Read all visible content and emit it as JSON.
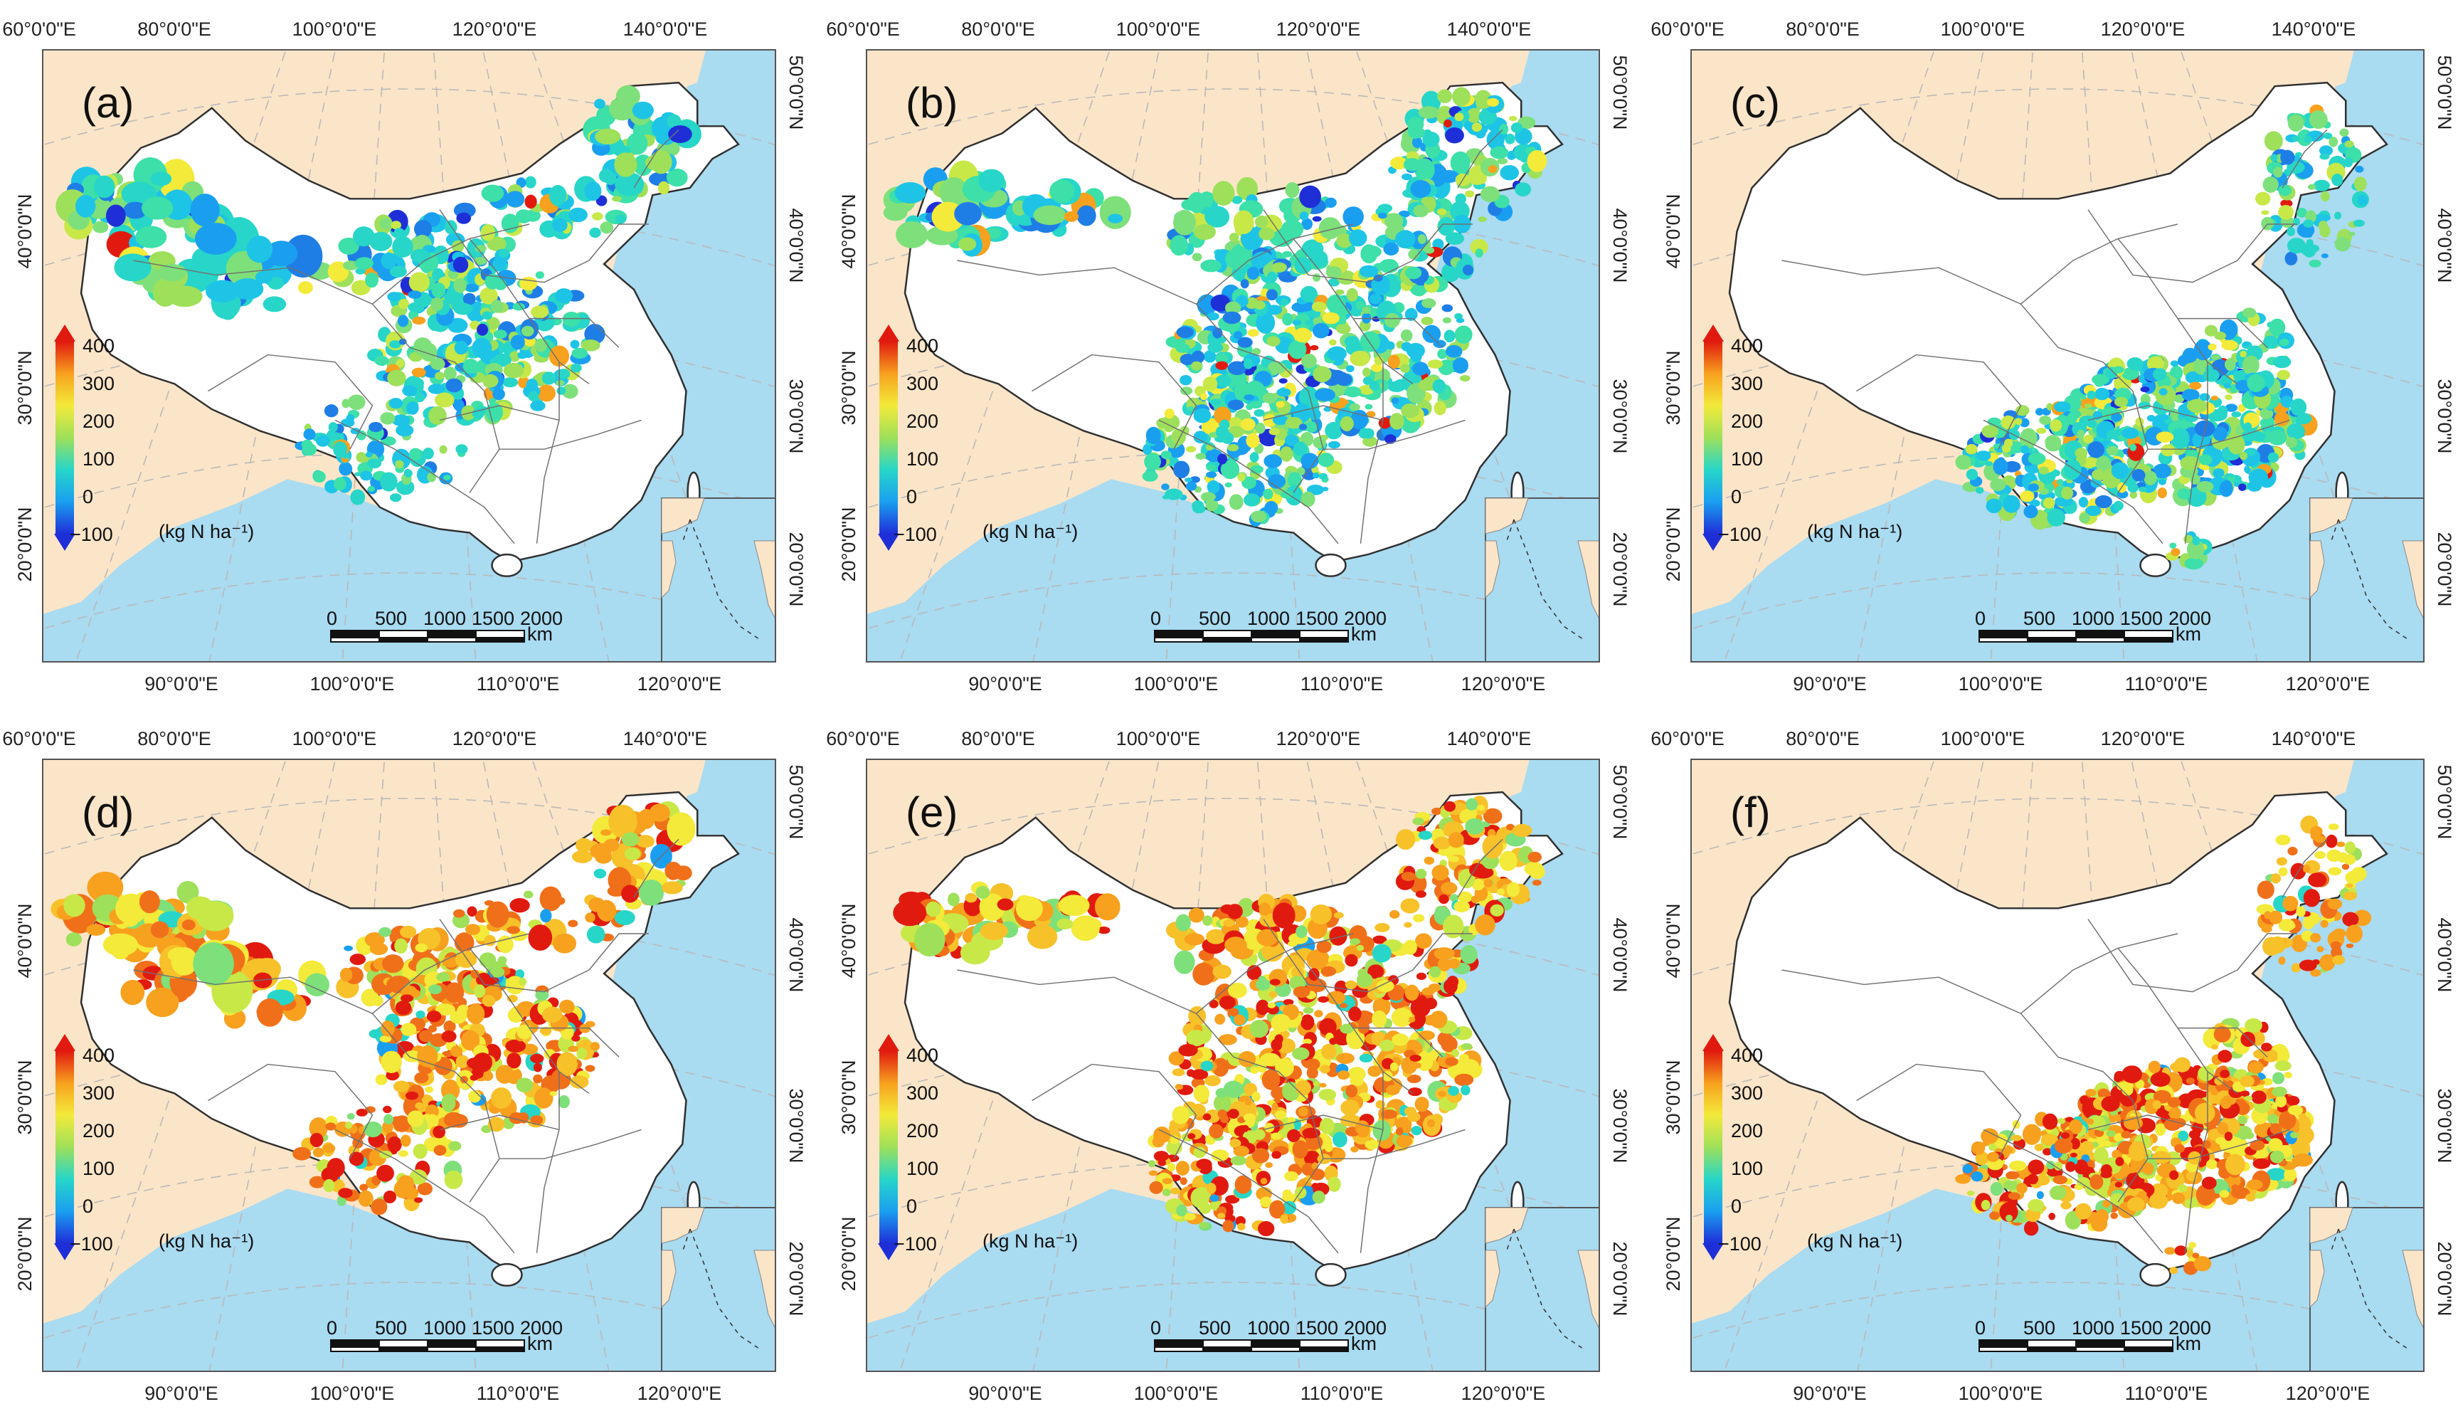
{
  "figure": {
    "colorbar": {
      "ticks": [
        "400",
        "300",
        "200",
        "100",
        "0",
        "−100"
      ],
      "unit": "(kg N ha⁻¹)",
      "colors": [
        "#1f2fd8",
        "#1a9ff0",
        "#27d6c8",
        "#9ee05a",
        "#f3ea3a",
        "#f7a11e",
        "#e11a10"
      ]
    },
    "scalebar": {
      "ticks": [
        "0",
        "500",
        "1000",
        "1500",
        "2000"
      ],
      "unit": "km"
    },
    "top_axis_labels": [
      "60°0'0\"E",
      "80°0'0\"E",
      "100°0'0\"E",
      "120°0'0\"E",
      "140°0'0\"E"
    ],
    "bottom_axis_labels": [
      "90°0'0\"E",
      "100°0'0\"E",
      "110°0'0\"E",
      "120°0'0\"E"
    ],
    "left_axis_labels": [
      "40°0'0\"N",
      "30°0'0\"N",
      "20°0'0\"N"
    ],
    "right_axis_labels": [
      "50°0'0\"N",
      "40°0'0\"N",
      "30°0'0\"N",
      "20°0'0\"N"
    ],
    "panels": [
      {
        "label": "(a)",
        "region": "north",
        "value_level": "low"
      },
      {
        "label": "(b)",
        "region": "north-central",
        "value_level": "low"
      },
      {
        "label": "(c)",
        "region": "south",
        "value_level": "low"
      },
      {
        "label": "(d)",
        "region": "north",
        "value_level": "high"
      },
      {
        "label": "(e)",
        "region": "north-central",
        "value_level": "high"
      },
      {
        "label": "(f)",
        "region": "south",
        "value_level": "high"
      }
    ]
  }
}
